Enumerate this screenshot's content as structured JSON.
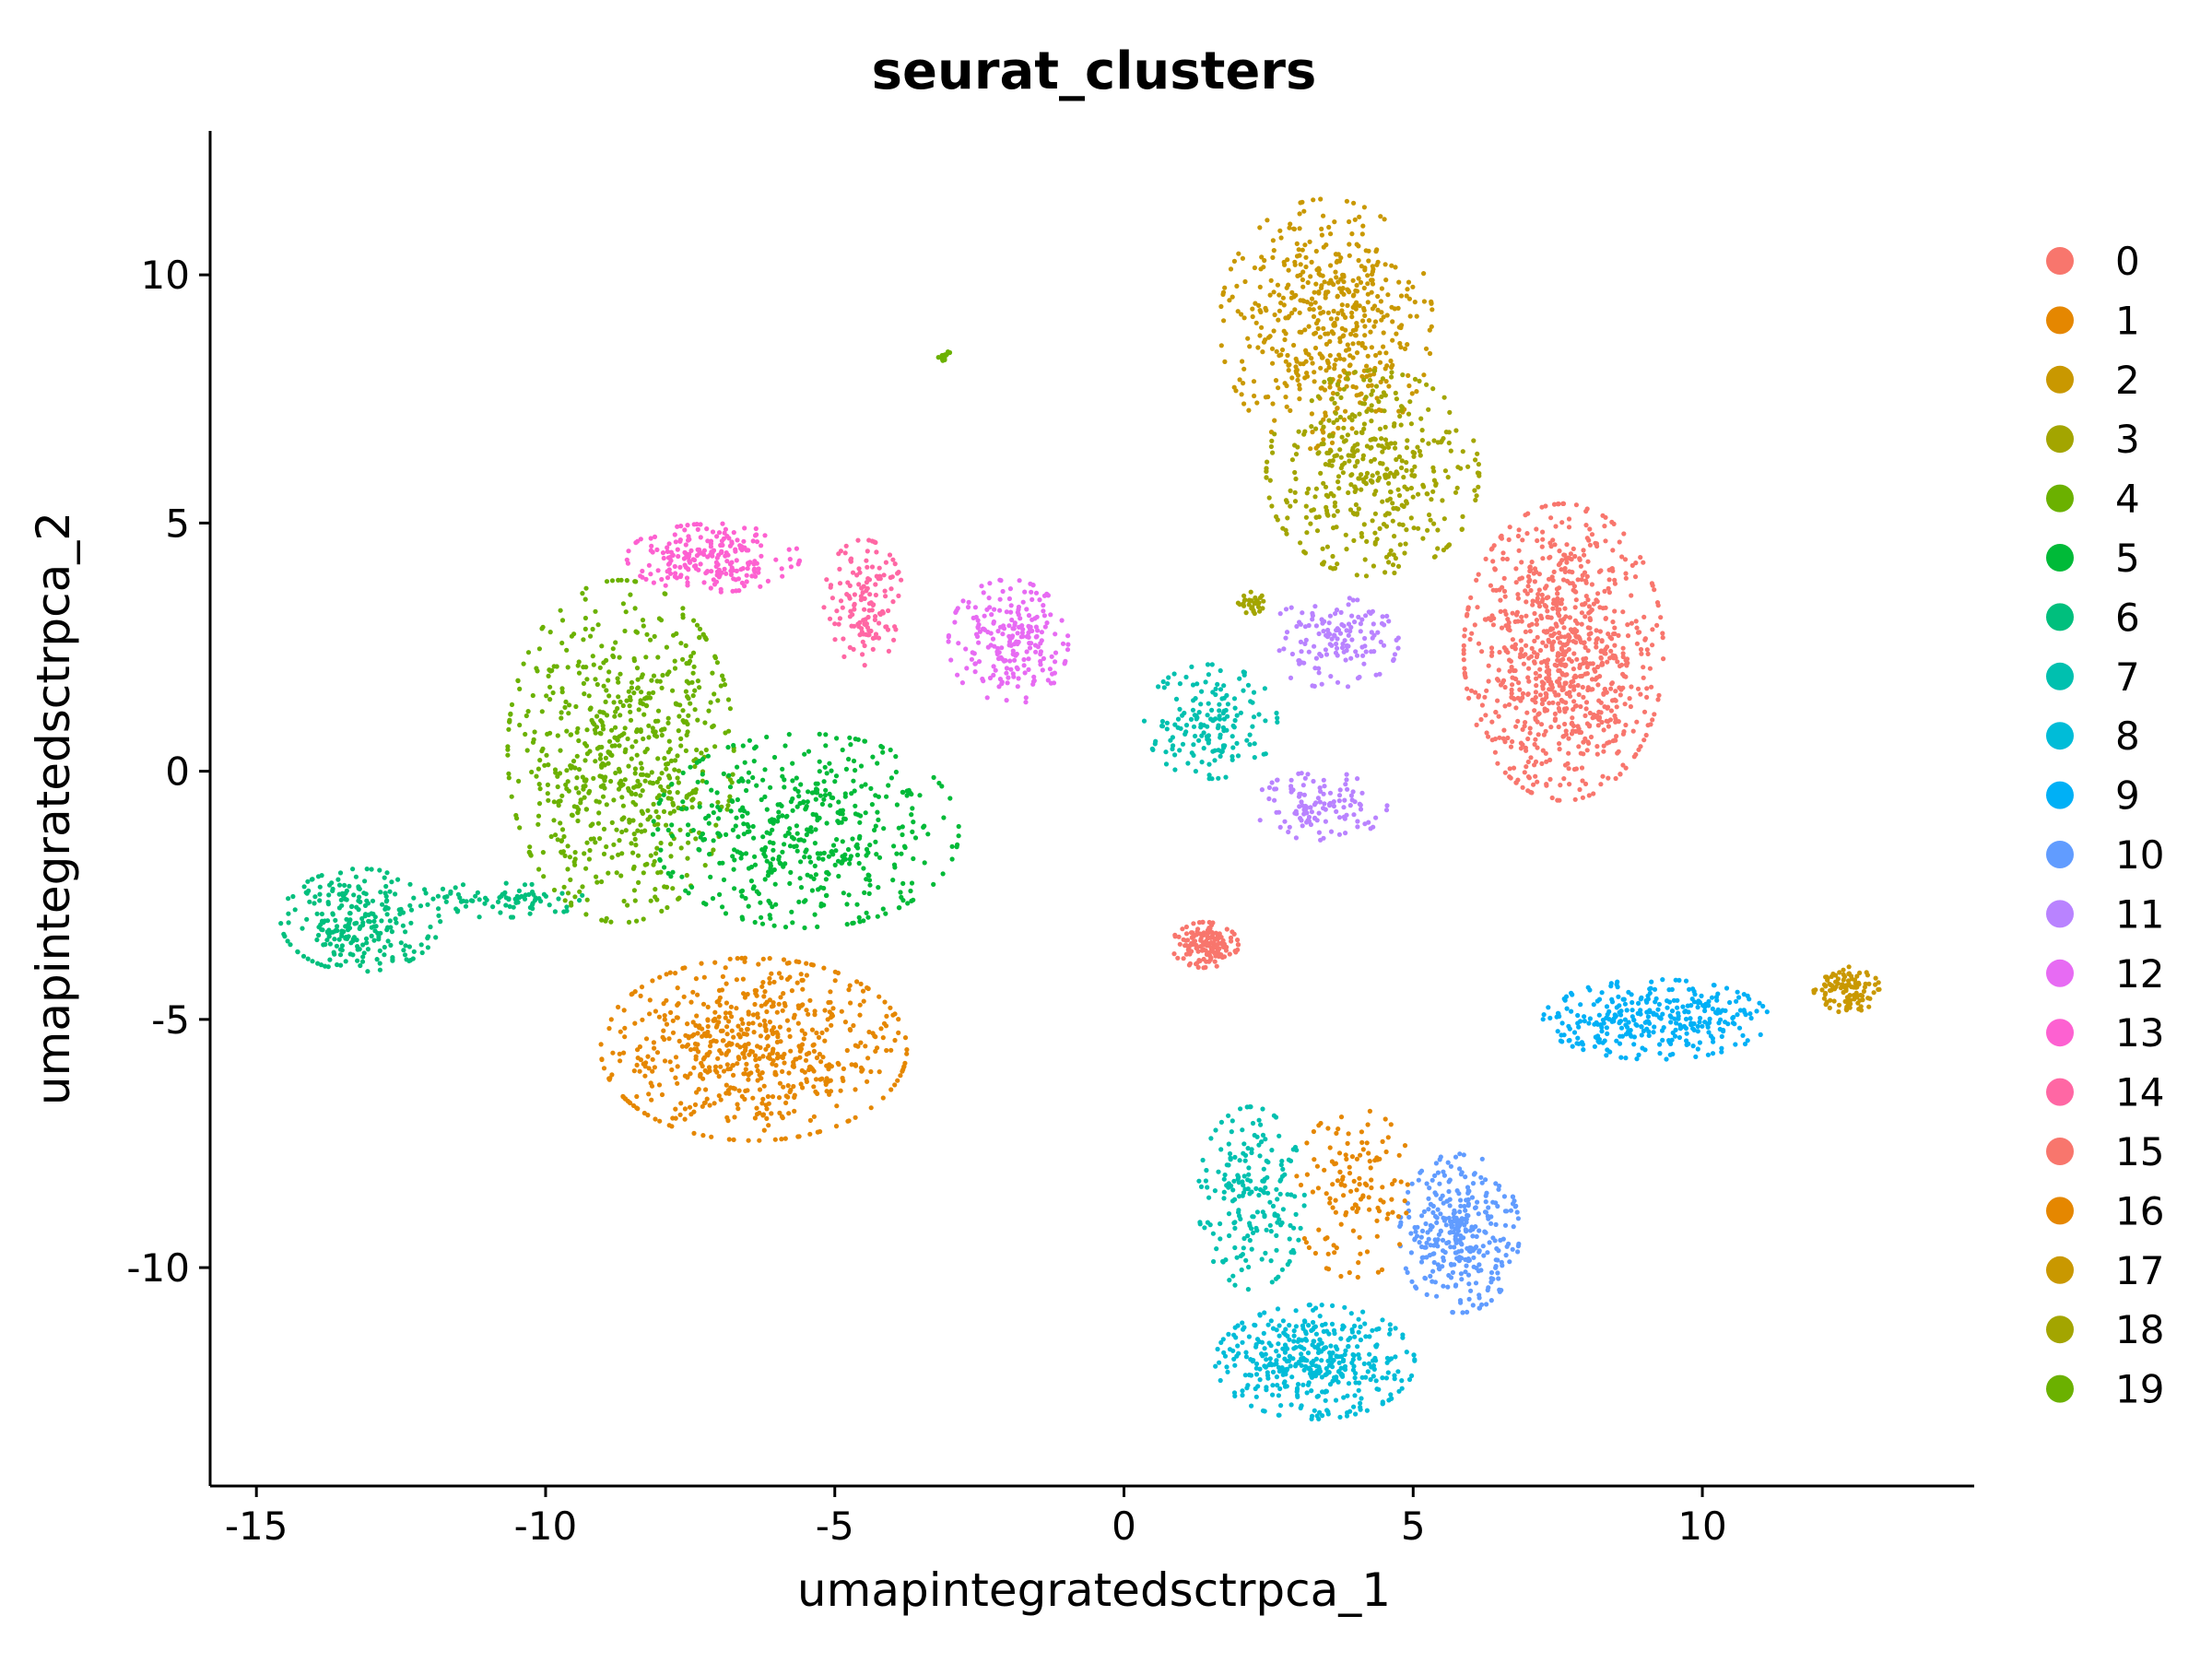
{
  "chart_data": {
    "type": "scatter",
    "title": "seurat_clusters",
    "xlabel": "umapintegratedsctrpca_1",
    "ylabel": "umapintegratedsctrpca_2",
    "xlim": [
      -15.8,
      14.7
    ],
    "ylim": [
      -14.4,
      12.9
    ],
    "x_ticks": [
      -15,
      -10,
      -5,
      0,
      5,
      10
    ],
    "x_tick_labels": [
      "-15",
      "-10",
      "-5",
      "0",
      "5",
      "10"
    ],
    "y_ticks": [
      -10,
      -5,
      0,
      5,
      10
    ],
    "y_tick_labels": [
      "-10",
      "-5",
      "0",
      "5",
      "10"
    ],
    "grid": false,
    "legend_position": "right",
    "series": [
      {
        "name": "0",
        "color": "#F8766D",
        "regions": [
          {
            "cx": 7.6,
            "cy": 2.4,
            "rx": 1.5,
            "ry": 2.6,
            "n": 900
          }
        ]
      },
      {
        "name": "1",
        "color": "#E58700",
        "regions": [
          {
            "cx": -6.4,
            "cy": -5.6,
            "rx": 2.3,
            "ry": 1.6,
            "n": 650
          }
        ]
      },
      {
        "name": "2",
        "color": "#C99800",
        "regions": [
          {
            "cx": 3.5,
            "cy": 9.0,
            "rx": 1.6,
            "ry": 2.2,
            "n": 520
          }
        ]
      },
      {
        "name": "3",
        "color": "#A3A500",
        "regions": [
          {
            "cx": 4.3,
            "cy": 6.0,
            "rx": 1.6,
            "ry": 1.8,
            "n": 420
          }
        ]
      },
      {
        "name": "4",
        "color": "#6BB100",
        "regions": [
          {
            "cx": -8.7,
            "cy": 0.4,
            "rx": 1.7,
            "ry": 3.0,
            "n": 700
          }
        ]
      },
      {
        "name": "5",
        "color": "#00BA38",
        "regions": [
          {
            "cx": -5.5,
            "cy": -1.2,
            "rx": 2.3,
            "ry": 1.7,
            "n": 500
          }
        ]
      },
      {
        "name": "6",
        "color": "#00BF7D",
        "regions": [
          {
            "cx": -13.2,
            "cy": -3.0,
            "rx": 1.2,
            "ry": 0.9,
            "n": 260
          },
          {
            "cx": -10.8,
            "cy": -2.6,
            "rx": 1.3,
            "ry": 0.3,
            "n": 80
          }
        ]
      },
      {
        "name": "7",
        "color": "#00C0AF",
        "regions": [
          {
            "cx": 1.5,
            "cy": 1.0,
            "rx": 1.0,
            "ry": 1.0,
            "n": 170
          },
          {
            "cx": 2.2,
            "cy": -8.6,
            "rx": 0.8,
            "ry": 1.6,
            "n": 200
          }
        ]
      },
      {
        "name": "8",
        "color": "#00BCD8",
        "regions": [
          {
            "cx": 3.3,
            "cy": -11.9,
            "rx": 1.5,
            "ry": 1.0,
            "n": 420
          }
        ]
      },
      {
        "name": "9",
        "color": "#00B0F6",
        "regions": [
          {
            "cx": 9.2,
            "cy": -5.0,
            "rx": 1.7,
            "ry": 0.7,
            "n": 330
          }
        ]
      },
      {
        "name": "10",
        "color": "#619CFF",
        "regions": [
          {
            "cx": 5.8,
            "cy": -9.3,
            "rx": 0.9,
            "ry": 1.4,
            "n": 340
          }
        ]
      },
      {
        "name": "11",
        "color": "#B983FF",
        "regions": [
          {
            "cx": 3.6,
            "cy": 2.6,
            "rx": 1.0,
            "ry": 0.8,
            "n": 140
          },
          {
            "cx": 3.4,
            "cy": -0.7,
            "rx": 1.0,
            "ry": 0.6,
            "n": 120
          }
        ]
      },
      {
        "name": "12",
        "color": "#E76BF3",
        "regions": [
          {
            "cx": -2.0,
            "cy": 2.6,
            "rx": 0.9,
            "ry": 1.1,
            "n": 220
          }
        ]
      },
      {
        "name": "13",
        "color": "#FD61D1",
        "regions": [
          {
            "cx": -7.1,
            "cy": 4.3,
            "rx": 1.3,
            "ry": 0.6,
            "n": 220
          }
        ]
      },
      {
        "name": "14",
        "color": "#FF67A4",
        "regions": [
          {
            "cx": -4.5,
            "cy": 3.4,
            "rx": 0.6,
            "ry": 1.1,
            "n": 140
          }
        ]
      },
      {
        "name": "15",
        "color": "#F8766D",
        "regions": [
          {
            "cx": 1.4,
            "cy": -3.5,
            "rx": 0.5,
            "ry": 0.4,
            "n": 150
          }
        ]
      },
      {
        "name": "16",
        "color": "#E58700",
        "regions": [
          {
            "cx": 4.0,
            "cy": -8.5,
            "rx": 0.9,
            "ry": 1.5,
            "n": 130
          }
        ]
      },
      {
        "name": "17",
        "color": "#C99800",
        "regions": [
          {
            "cx": 12.5,
            "cy": -4.4,
            "rx": 0.5,
            "ry": 0.4,
            "n": 110
          }
        ]
      },
      {
        "name": "18",
        "color": "#A3A500",
        "regions": [
          {
            "cx": 2.2,
            "cy": 3.4,
            "rx": 0.2,
            "ry": 0.2,
            "n": 30
          }
        ]
      },
      {
        "name": "19",
        "color": "#6BB100",
        "regions": [
          {
            "cx": -3.1,
            "cy": 8.4,
            "rx": 0.1,
            "ry": 0.15,
            "n": 15
          }
        ]
      }
    ]
  }
}
